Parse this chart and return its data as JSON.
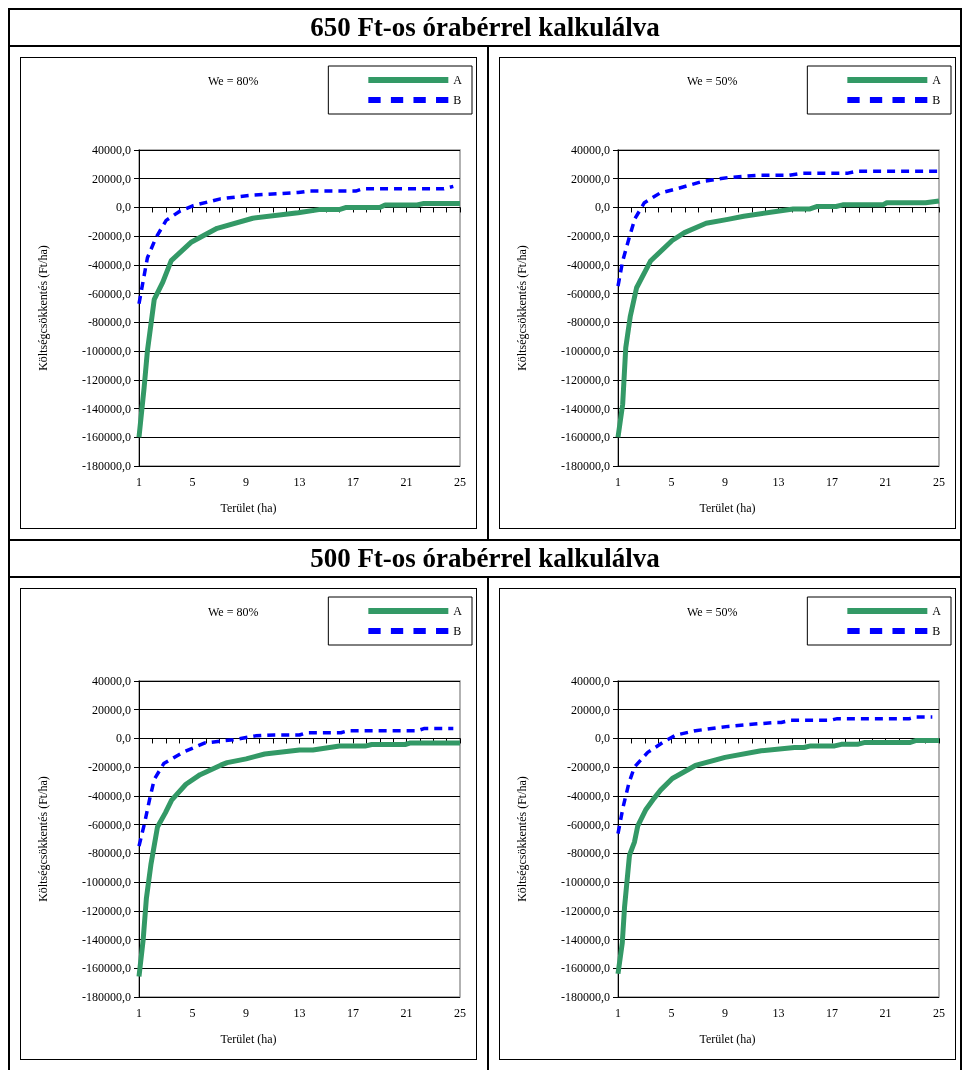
{
  "chart_data": [
    {
      "type": "line",
      "title": "650 Ft-os órabérrel kalkulálva",
      "subtitle": "We = 80%",
      "xlabel": "Terület (ha)",
      "ylabel": "Költségcsökkentés (Ft/ha)",
      "legend": "top right",
      "grid": "y",
      "marker": "none",
      "xlim": [
        1,
        25
      ],
      "xticks": [
        1,
        {
          "value": 2,
          "label": null
        },
        {
          "value": 3,
          "label": null
        },
        {
          "value": 4,
          "label": null
        },
        5,
        {
          "value": 6,
          "label": null
        },
        {
          "value": 7,
          "label": null
        },
        {
          "value": 8,
          "label": null
        },
        9,
        {
          "value": 10,
          "label": null
        },
        {
          "value": 11,
          "label": null
        },
        {
          "value": 12,
          "label": null
        },
        13,
        {
          "value": 14,
          "label": null
        },
        {
          "value": 15,
          "label": null
        },
        {
          "value": 16,
          "label": null
        },
        17,
        {
          "value": 18,
          "label": null
        },
        {
          "value": 19,
          "label": null
        },
        {
          "value": 20,
          "label": null
        },
        21,
        {
          "value": 22,
          "label": null
        },
        {
          "value": 23,
          "label": null
        },
        {
          "value": 24,
          "label": null
        },
        25
      ],
      "ylim": [
        -180000,
        40000
      ],
      "yticks": [
        {
          "value": -180000,
          "label": "-180000,0"
        },
        {
          "value": -160000,
          "label": "-160000,0"
        },
        {
          "value": -140000,
          "label": "-140000,0"
        },
        {
          "value": -120000,
          "label": "-120000,0"
        },
        {
          "value": -100000,
          "label": "-100000,0"
        },
        {
          "value": -80000,
          "label": "-80000,0"
        },
        {
          "value": -60000,
          "label": "-60000,0"
        },
        {
          "value": -40000,
          "label": "-40000,0"
        },
        {
          "value": -20000,
          "label": "-20000,0"
        },
        {
          "value": 0,
          "label": "0,0"
        },
        {
          "value": 20000,
          "label": "20000,0"
        },
        {
          "value": 40000,
          "label": "40000,0"
        }
      ],
      "series": [
        {
          "name": "A",
          "color": "#339966",
          "line_style": "solid",
          "x": [
            1,
            1.38,
            1.63,
            2.14,
            2.78,
            3.41,
            4.93,
            6.84,
            9.5,
            12.9,
            14.45,
            15.97,
            16.5,
            19.0,
            19.4,
            21.8,
            22.3,
            25
          ],
          "values": [
            -160000,
            -125700,
            -99800,
            -64000,
            -52000,
            -37000,
            -24000,
            -14500,
            -7500,
            -3700,
            -1500,
            -1500,
            0,
            0,
            1700,
            1700,
            2800,
            2800
          ]
        },
        {
          "name": "B",
          "color": "#0000ff",
          "line_style": "dashed",
          "x": [
            1,
            1.63,
            2.27,
            3.03,
            4.05,
            5.06,
            7.09,
            9.5,
            12.9,
            13.7,
            17.2,
            17.7,
            23.8,
            24.5
          ],
          "values": [
            -67000,
            -35000,
            -21000,
            -9000,
            -2600,
            1300,
            6000,
            8600,
            10400,
            11400,
            11400,
            13000,
            13000,
            14700
          ]
        }
      ]
    },
    {
      "type": "line",
      "subtitle": "We = 50%",
      "xlabel": "Terület (ha)",
      "ylabel": "Költségcsökkentés (Ft/ha)",
      "legend": "top right",
      "grid": "y",
      "marker": "none",
      "xlim": [
        1,
        25
      ],
      "xticks": [
        1,
        {
          "value": 2,
          "label": null
        },
        {
          "value": 3,
          "label": null
        },
        {
          "value": 4,
          "label": null
        },
        5,
        {
          "value": 6,
          "label": null
        },
        {
          "value": 7,
          "label": null
        },
        {
          "value": 8,
          "label": null
        },
        9,
        {
          "value": 10,
          "label": null
        },
        {
          "value": 11,
          "label": null
        },
        {
          "value": 12,
          "label": null
        },
        13,
        {
          "value": 14,
          "label": null
        },
        {
          "value": 15,
          "label": null
        },
        {
          "value": 16,
          "label": null
        },
        17,
        {
          "value": 18,
          "label": null
        },
        {
          "value": 19,
          "label": null
        },
        {
          "value": 20,
          "label": null
        },
        21,
        {
          "value": 22,
          "label": null
        },
        {
          "value": 23,
          "label": null
        },
        {
          "value": 24,
          "label": null
        },
        25
      ],
      "ylim": [
        -180000,
        40000
      ],
      "yticks": [
        {
          "value": -180000,
          "label": "-180000,0"
        },
        {
          "value": -160000,
          "label": "-160000,0"
        },
        {
          "value": -140000,
          "label": "-140000,0"
        },
        {
          "value": -120000,
          "label": "-120000,0"
        },
        {
          "value": -100000,
          "label": "-100000,0"
        },
        {
          "value": -80000,
          "label": "-80000,0"
        },
        {
          "value": -60000,
          "label": "-60000,0"
        },
        {
          "value": -40000,
          "label": "-40000,0"
        },
        {
          "value": -20000,
          "label": "-20000,0"
        },
        {
          "value": 0,
          "label": "0,0"
        },
        {
          "value": 20000,
          "label": "20000,0"
        },
        {
          "value": 40000,
          "label": "40000,0"
        }
      ],
      "series": [
        {
          "name": "A",
          "color": "#339966",
          "line_style": "solid",
          "x": [
            1,
            1.35,
            1.58,
            1.92,
            2.39,
            3.43,
            5.05,
            5.97,
            7.59,
            9.21,
            10.4,
            14.1,
            15.3,
            15.9,
            17.3,
            17.8,
            20.8,
            21.1,
            24.0,
            25
          ],
          "values": [
            -160000,
            -137000,
            -97600,
            -75700,
            -55900,
            -37300,
            -23000,
            -17500,
            -11000,
            -8300,
            -6100,
            -1100,
            -1100,
            700,
            700,
            1800,
            1800,
            3300,
            3300,
            4500
          ]
        },
        {
          "name": "B",
          "color": "#0000ff",
          "line_style": "dashed",
          "x": [
            1,
            1.35,
            1.81,
            2.27,
            2.97,
            4.12,
            5.28,
            7.36,
            9.21,
            11.5,
            13.8,
            14.8,
            18.2,
            18.8,
            25
          ],
          "values": [
            -54800,
            -37300,
            -21900,
            -7700,
            3300,
            9900,
            12700,
            18200,
            20800,
            22400,
            22400,
            23900,
            23900,
            25200,
            25200
          ]
        }
      ]
    },
    {
      "type": "line",
      "title": "500 Ft-os órabérrel kalkulálva",
      "subtitle": "We = 80%",
      "xlabel": "Terület (ha)",
      "ylabel": "Költségcsökkentés (Ft/ha)",
      "legend": "top right",
      "grid": "y",
      "marker": "none",
      "xlim": [
        1,
        25
      ],
      "xticks": [
        1,
        {
          "value": 2,
          "label": null
        },
        {
          "value": 3,
          "label": null
        },
        {
          "value": 4,
          "label": null
        },
        5,
        {
          "value": 6,
          "label": null
        },
        {
          "value": 7,
          "label": null
        },
        {
          "value": 8,
          "label": null
        },
        9,
        {
          "value": 10,
          "label": null
        },
        {
          "value": 11,
          "label": null
        },
        {
          "value": 12,
          "label": null
        },
        13,
        {
          "value": 14,
          "label": null
        },
        {
          "value": 15,
          "label": null
        },
        {
          "value": 16,
          "label": null
        },
        17,
        {
          "value": 18,
          "label": null
        },
        {
          "value": 19,
          "label": null
        },
        {
          "value": 20,
          "label": null
        },
        21,
        {
          "value": 22,
          "label": null
        },
        {
          "value": 23,
          "label": null
        },
        {
          "value": 24,
          "label": null
        },
        25
      ],
      "ylim": [
        -180000,
        40000
      ],
      "yticks": [
        {
          "value": -180000,
          "label": "-180000,0"
        },
        {
          "value": -160000,
          "label": "-160000,0"
        },
        {
          "value": -140000,
          "label": "-140000,0"
        },
        {
          "value": -120000,
          "label": "-120000,0"
        },
        {
          "value": -100000,
          "label": "-100000,0"
        },
        {
          "value": -80000,
          "label": "-80000,0"
        },
        {
          "value": -60000,
          "label": "-60000,0"
        },
        {
          "value": -40000,
          "label": "-40000,0"
        },
        {
          "value": -20000,
          "label": "-20000,0"
        },
        {
          "value": 0,
          "label": "0,0"
        },
        {
          "value": 20000,
          "label": "20000,0"
        },
        {
          "value": 40000,
          "label": "40000,0"
        }
      ],
      "series": [
        {
          "name": "A",
          "color": "#339966",
          "line_style": "solid",
          "x": [
            1,
            1.31,
            1.55,
            1.9,
            2.38,
            2.97,
            3.44,
            4.51,
            5.57,
            7.11,
            7.59,
            9.01,
            10.4,
            13.0,
            14.0,
            16.0,
            17.9,
            18.4,
            20.9,
            21.3,
            25
          ],
          "values": [
            -165700,
            -140300,
            -111500,
            -87200,
            -61700,
            -51800,
            -42900,
            -31900,
            -25200,
            -18600,
            -16800,
            -14200,
            -10800,
            -8000,
            -8000,
            -5300,
            -5300,
            -4200,
            -4200,
            -3100,
            -3100
          ]
        },
        {
          "name": "B",
          "color": "#0000ff",
          "line_style": "dashed",
          "x": [
            1,
            1.43,
            1.78,
            2.14,
            2.85,
            4.27,
            5.93,
            8.06,
            9.72,
            11.1,
            13.0,
            13.5,
            16.1,
            16.6,
            21.8,
            22.3,
            24.5
          ],
          "values": [
            -75000,
            -58400,
            -42900,
            -28500,
            -17500,
            -9700,
            -3100,
            -900,
            1800,
            2400,
            2400,
            4000,
            4000,
            5300,
            5300,
            6900,
            6900
          ]
        }
      ]
    },
    {
      "type": "line",
      "subtitle": "We = 50%",
      "xlabel": "Terület (ha)",
      "ylabel": "Költségcsökkentés (Ft/ha)",
      "legend": "top right",
      "grid": "y",
      "marker": "none",
      "xlim": [
        1,
        25
      ],
      "xticks": [
        1,
        {
          "value": 2,
          "label": null
        },
        {
          "value": 3,
          "label": null
        },
        {
          "value": 4,
          "label": null
        },
        5,
        {
          "value": 6,
          "label": null
        },
        {
          "value": 7,
          "label": null
        },
        {
          "value": 8,
          "label": null
        },
        9,
        {
          "value": 10,
          "label": null
        },
        {
          "value": 11,
          "label": null
        },
        {
          "value": 12,
          "label": null
        },
        13,
        {
          "value": 14,
          "label": null
        },
        {
          "value": 15,
          "label": null
        },
        {
          "value": 16,
          "label": null
        },
        17,
        {
          "value": 18,
          "label": null
        },
        {
          "value": 19,
          "label": null
        },
        {
          "value": 20,
          "label": null
        },
        21,
        {
          "value": 22,
          "label": null
        },
        {
          "value": 23,
          "label": null
        },
        {
          "value": 24,
          "label": null
        },
        25
      ],
      "ylim": [
        -180000,
        40000
      ],
      "yticks": [
        {
          "value": -180000,
          "label": "-180000,0"
        },
        {
          "value": -160000,
          "label": "-160000,0"
        },
        {
          "value": -140000,
          "label": "-140000,0"
        },
        {
          "value": -120000,
          "label": "-120000,0"
        },
        {
          "value": -100000,
          "label": "-100000,0"
        },
        {
          "value": -80000,
          "label": "-80000,0"
        },
        {
          "value": -60000,
          "label": "-60000,0"
        },
        {
          "value": -40000,
          "label": "-40000,0"
        },
        {
          "value": -20000,
          "label": "-20000,0"
        },
        {
          "value": 0,
          "label": "0,0"
        },
        {
          "value": 20000,
          "label": "20000,0"
        },
        {
          "value": 40000,
          "label": "40000,0"
        }
      ],
      "series": [
        {
          "name": "A",
          "color": "#339966",
          "line_style": "solid",
          "x": [
            1,
            1.32,
            1.49,
            1.86,
            2.23,
            2.48,
            3.09,
            3.71,
            4.2,
            5.06,
            6.79,
            9.0,
            11.7,
            14.2,
            14.9,
            15.4,
            17.2,
            17.7,
            18.9,
            19.4,
            22.8,
            23.3,
            25
          ],
          "values": [
            -163800,
            -142300,
            -117400,
            -81200,
            -72100,
            -60800,
            -49400,
            -41500,
            -35800,
            -27900,
            -18800,
            -13200,
            -8600,
            -6300,
            -6300,
            -5200,
            -5200,
            -4100,
            -4100,
            -2900,
            -2900,
            -1400,
            -1400
          ]
        },
        {
          "name": "B",
          "color": "#0000ff",
          "line_style": "dashed",
          "x": [
            1,
            1.37,
            1.81,
            2.23,
            3.22,
            4.33,
            5.31,
            6.79,
            9.25,
            11.2,
            12.7,
            13.2,
            13.9,
            16.9,
            17.4,
            22.8,
            23.3,
            24.5
          ],
          "values": [
            -66300,
            -48200,
            -31200,
            -19900,
            -9700,
            -2900,
            2300,
            5400,
            8400,
            10000,
            11100,
            11100,
            12700,
            12700,
            13800,
            13800,
            15000,
            15000
          ]
        }
      ]
    }
  ]
}
